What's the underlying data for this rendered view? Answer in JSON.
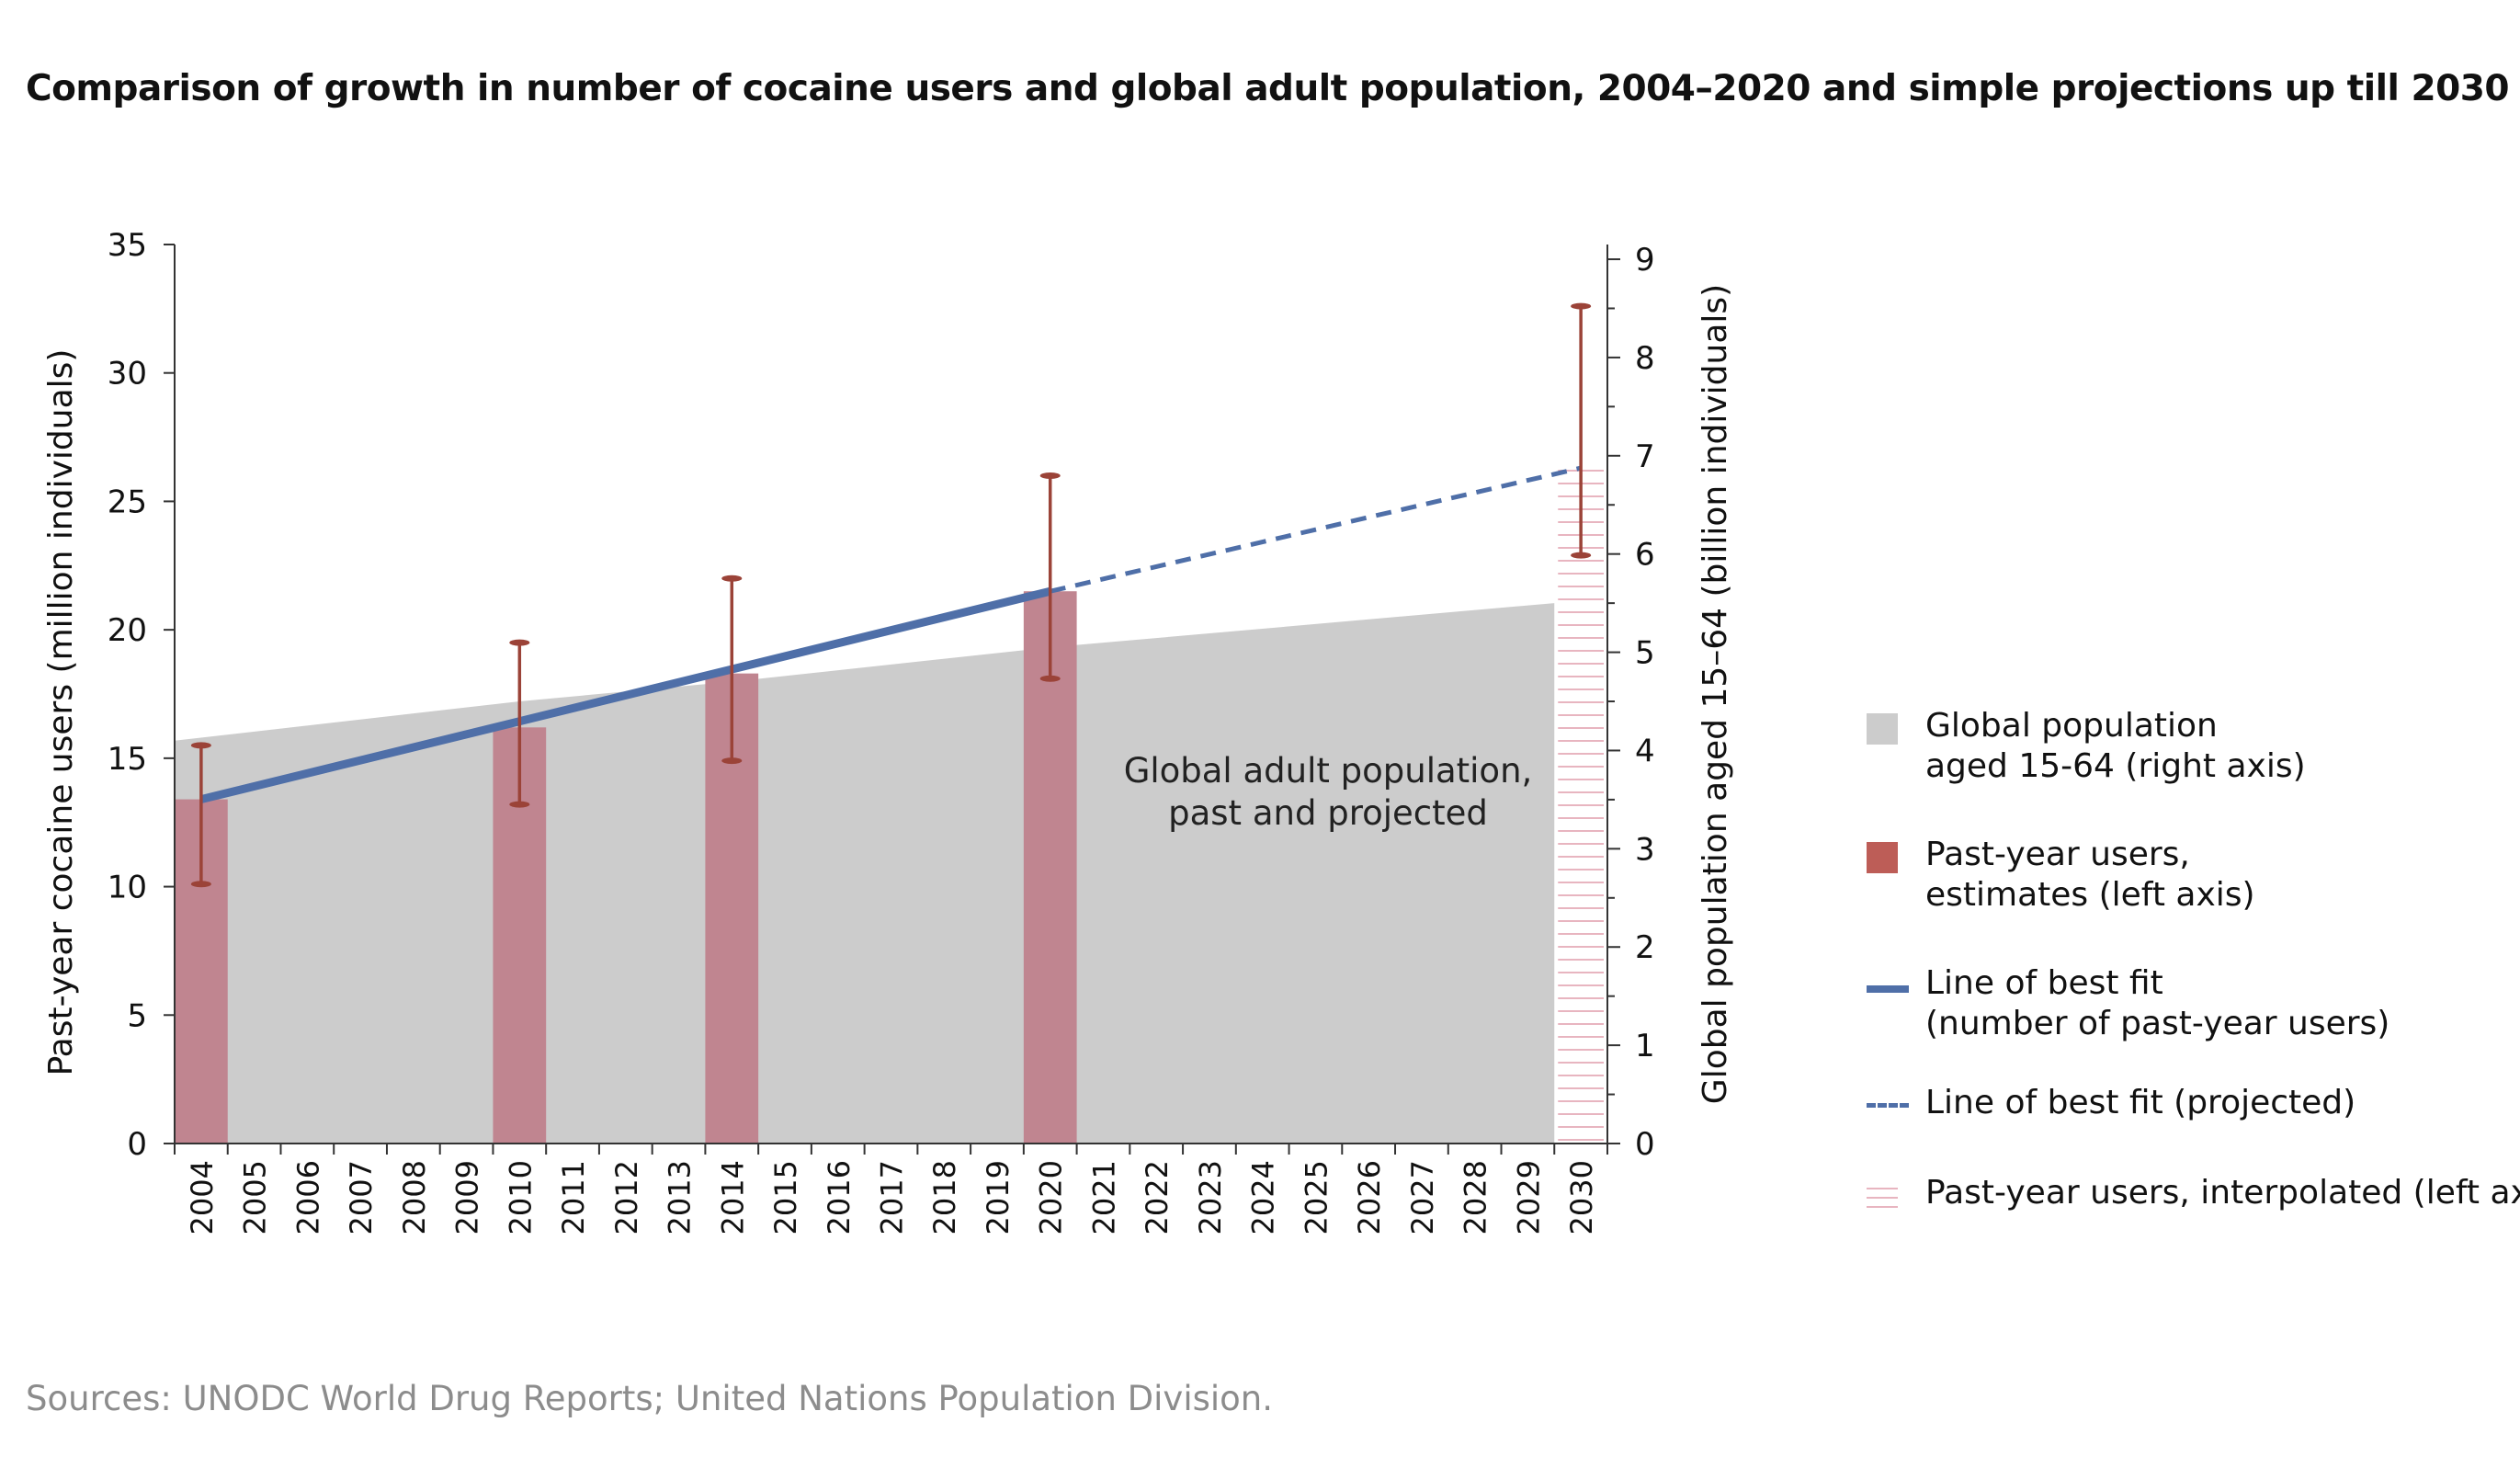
{
  "title": "Comparison of growth in number of cocaine users and global adult population, 2004–2020 and simple projections up till 2030",
  "source": "Sources: UNODC World Drug Reports; United Nations Population Division.",
  "colors": {
    "population": "#cccccc",
    "estimate_bar": "#c08590",
    "error_bar": "#9b4338",
    "fit_line": "#4f6fa8",
    "interpolated": "#e8b5c0",
    "legend_estimate": "#bd5d57"
  },
  "chart_data": {
    "type": "bar",
    "title": "Comparison of growth in number of cocaine users and global adult population, 2004–2020 and simple projections up till 2030",
    "x": [
      "2004",
      "2005",
      "2006",
      "2007",
      "2008",
      "2009",
      "2010",
      "2011",
      "2012",
      "2013",
      "2014",
      "2015",
      "2016",
      "2017",
      "2018",
      "2019",
      "2020",
      "2021",
      "2022",
      "2023",
      "2024",
      "2025",
      "2026",
      "2027",
      "2028",
      "2029",
      "2030"
    ],
    "ylabel_left": "Past-year cocaine users (million individuals)",
    "ylabel_right": "Global population aged 15–64 (billion individuals)",
    "ylim_left": [
      0,
      35
    ],
    "yticks_left": [
      "0",
      "5",
      "10",
      "15",
      "20",
      "25",
      "30",
      "35"
    ],
    "ylim_right": [
      0,
      9.15
    ],
    "yticks_right": [
      "0",
      "1",
      "2",
      "3",
      "4",
      "5",
      "6",
      "7",
      "8",
      "9"
    ],
    "grid": false,
    "legend_position": "right",
    "series": [
      {
        "name": "Global population aged 15-64 (right axis)",
        "type": "area",
        "axis": "right",
        "x": [
          "2004",
          "2010",
          "2014",
          "2020",
          "2030"
        ],
        "values": [
          4.1,
          4.5,
          4.7,
          5.05,
          5.5
        ]
      },
      {
        "name": "Past-year users, estimates (left axis)",
        "type": "bar",
        "axis": "left",
        "x": [
          "2004",
          "2010",
          "2014",
          "2020"
        ],
        "values": [
          13.4,
          16.2,
          18.3,
          21.5
        ],
        "error_low": [
          10.1,
          13.2,
          14.9,
          18.1
        ],
        "error_high": [
          15.5,
          19.5,
          22.0,
          26.0
        ]
      },
      {
        "name": "Line of best fit (number of past-year users)",
        "type": "line",
        "axis": "left",
        "x": [
          "2004",
          "2020"
        ],
        "values": [
          13.4,
          21.5
        ]
      },
      {
        "name": "Line of best fit (projected)",
        "type": "line",
        "axis": "left",
        "x": [
          "2020",
          "2030"
        ],
        "values": [
          21.5,
          26.3
        ]
      },
      {
        "name": "Past-year users, interpolated (left axis)",
        "type": "bar",
        "axis": "left",
        "x": [
          "2030"
        ],
        "values": [
          26.3
        ],
        "error_low": [
          22.9
        ],
        "error_high": [
          32.6
        ]
      }
    ],
    "annotation": "Global adult population, past and projected"
  },
  "legend": [
    {
      "kind": "box",
      "color_key": "population",
      "label": "Global population\naged 15-64 (right axis)"
    },
    {
      "kind": "box",
      "color_key": "legend_estimate",
      "label": "Past-year users,\nestimates (left axis)"
    },
    {
      "kind": "line",
      "color_key": "fit_line",
      "label": "Line of best fit\n(number of past-year users)"
    },
    {
      "kind": "dash",
      "color_key": "fit_line",
      "label": "Line of best fit (projected)"
    },
    {
      "kind": "hatch",
      "color_key": "interpolated",
      "label": "Past-year users, interpolated (left axis)"
    }
  ]
}
